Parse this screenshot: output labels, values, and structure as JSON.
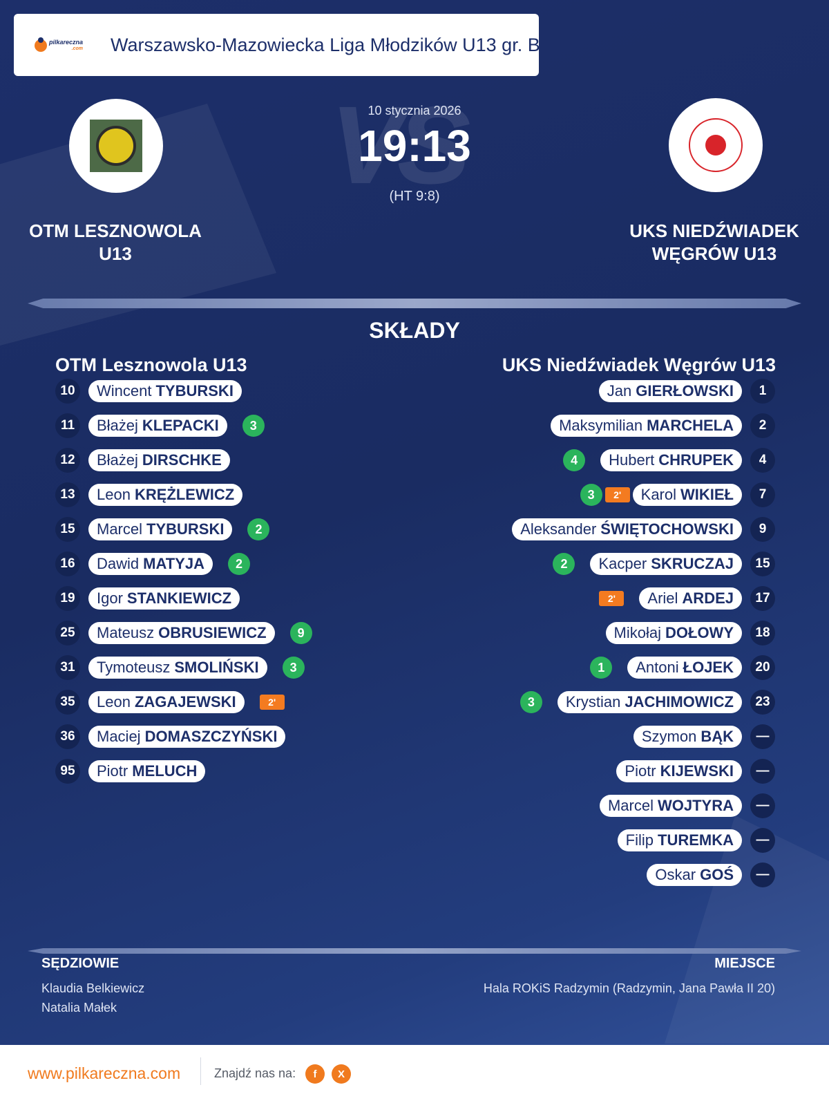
{
  "header": {
    "league": "Warszawsko-Mazowiecka Liga Młodzików U13 gr. B",
    "logo_text": "pilkareczna",
    "logo_suffix": ".com"
  },
  "match": {
    "date": "10 stycznia 2026",
    "score": "19:13",
    "halftime": "(HT 9:8)",
    "vs_watermark": "VS",
    "home_team": "OTM LESZNOWOLA U13",
    "away_team": "UKS NIEDŹWIADEK WĘGRÓW U13"
  },
  "lineups": {
    "title": "SKŁADY",
    "home_title": "OTM Lesznowola U13",
    "away_title": "UKS Niedźwiadek Węgrów U13",
    "home": [
      {
        "num": "10",
        "first": "Wincent",
        "last": "TYBURSKI",
        "goals": "",
        "susp": ""
      },
      {
        "num": "11",
        "first": "Błażej",
        "last": "KLEPACKI",
        "goals": "3",
        "susp": ""
      },
      {
        "num": "12",
        "first": "Błażej",
        "last": "DIRSCHKE",
        "goals": "",
        "susp": ""
      },
      {
        "num": "13",
        "first": "Leon",
        "last": "KRĘŻLEWICZ",
        "goals": "",
        "susp": ""
      },
      {
        "num": "15",
        "first": "Marcel",
        "last": "TYBURSKI",
        "goals": "2",
        "susp": ""
      },
      {
        "num": "16",
        "first": "Dawid",
        "last": "MATYJA",
        "goals": "2",
        "susp": ""
      },
      {
        "num": "19",
        "first": "Igor",
        "last": "STANKIEWICZ",
        "goals": "",
        "susp": ""
      },
      {
        "num": "25",
        "first": "Mateusz",
        "last": "OBRUSIEWICZ",
        "goals": "9",
        "susp": ""
      },
      {
        "num": "31",
        "first": "Tymoteusz",
        "last": "SMOLIŃSKI",
        "goals": "3",
        "susp": ""
      },
      {
        "num": "35",
        "first": "Leon",
        "last": "ZAGAJEWSKI",
        "goals": "",
        "susp": "2'"
      },
      {
        "num": "36",
        "first": "Maciej",
        "last": "DOMASZCZYŃSKI",
        "goals": "",
        "susp": ""
      },
      {
        "num": "95",
        "first": "Piotr",
        "last": "MELUCH",
        "goals": "",
        "susp": ""
      }
    ],
    "away": [
      {
        "num": "1",
        "first": "Jan",
        "last": "GIERŁOWSKI",
        "goals": "",
        "susp": ""
      },
      {
        "num": "2",
        "first": "Maksymilian",
        "last": "MARCHELA",
        "goals": "",
        "susp": ""
      },
      {
        "num": "4",
        "first": "Hubert",
        "last": "CHRUPEK",
        "goals": "4",
        "susp": ""
      },
      {
        "num": "7",
        "first": "Karol",
        "last": "WIKIEŁ",
        "goals": "3",
        "susp": "2'"
      },
      {
        "num": "9",
        "first": "Aleksander",
        "last": "ŚWIĘTOCHOWSKI",
        "goals": "",
        "susp": ""
      },
      {
        "num": "15",
        "first": "Kacper",
        "last": "SKRUCZAJ",
        "goals": "2",
        "susp": ""
      },
      {
        "num": "17",
        "first": "Ariel",
        "last": "ARDEJ",
        "goals": "",
        "susp": "2'"
      },
      {
        "num": "18",
        "first": "Mikołaj",
        "last": "DOŁOWY",
        "goals": "",
        "susp": ""
      },
      {
        "num": "20",
        "first": "Antoni",
        "last": "ŁOJEK",
        "goals": "1",
        "susp": ""
      },
      {
        "num": "23",
        "first": "Krystian",
        "last": "JACHIMOWICZ",
        "goals": "3",
        "susp": ""
      },
      {
        "num": "—",
        "first": "Szymon",
        "last": "BĄK",
        "goals": "",
        "susp": ""
      },
      {
        "num": "—",
        "first": "Piotr",
        "last": "KIJEWSKI",
        "goals": "",
        "susp": ""
      },
      {
        "num": "—",
        "first": "Marcel",
        "last": "WOJTYRA",
        "goals": "",
        "susp": ""
      },
      {
        "num": "—",
        "first": "Filip",
        "last": "TUREMKA",
        "goals": "",
        "susp": ""
      },
      {
        "num": "—",
        "first": "Oskar",
        "last": "GOŚ",
        "goals": "",
        "susp": ""
      }
    ]
  },
  "officials": {
    "referees_label": "SĘDZIOWIE",
    "referees": [
      "Klaudia Belkiewicz",
      "Natalia Małek"
    ],
    "venue_label": "MIEJSCE",
    "venue": "Hala ROKiS Radzymin (Radzymin, Jana Pawła II 20)"
  },
  "footer": {
    "site": "www.pilkareczna.com",
    "find_us": "Znajdź nas na:",
    "facebook": "f",
    "x": "X"
  },
  "colors": {
    "background": "#1d2f6a",
    "accent": "#f07a1e",
    "goal": "#2bb45c",
    "suspension": "#f47b20"
  }
}
